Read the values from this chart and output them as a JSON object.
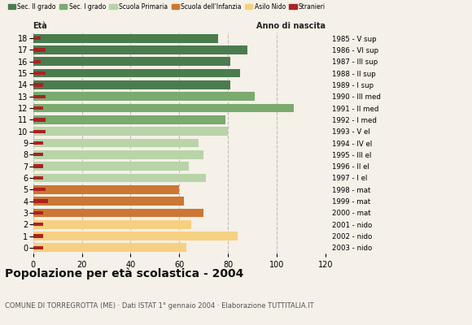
{
  "ages": [
    18,
    17,
    16,
    15,
    14,
    13,
    12,
    11,
    10,
    9,
    8,
    7,
    6,
    5,
    4,
    3,
    2,
    1,
    0
  ],
  "year_labels": [
    "1985 - V sup",
    "1986 - VI sup",
    "1987 - III sup",
    "1988 - II sup",
    "1989 - I sup",
    "1990 - III med",
    "1991 - II med",
    "1992 - I med",
    "1993 - V el",
    "1994 - IV el",
    "1995 - III el",
    "1996 - II el",
    "1997 - I el",
    "1998 - mat",
    "1999 - mat",
    "2000 - mat",
    "2001 - nido",
    "2002 - nido",
    "2003 - nido"
  ],
  "values": [
    76,
    88,
    81,
    85,
    81,
    91,
    107,
    79,
    80,
    68,
    70,
    64,
    71,
    60,
    62,
    70,
    65,
    84,
    63
  ],
  "stranieri": [
    3,
    5,
    3,
    5,
    4,
    5,
    4,
    5,
    5,
    4,
    4,
    4,
    4,
    5,
    6,
    4,
    4,
    4,
    4
  ],
  "colors": {
    "sec2": "#4a7c4e",
    "sec1": "#7aaa6e",
    "primaria": "#b8d4a8",
    "infanzia": "#cc7733",
    "nido": "#f5d080",
    "stranieri": "#aa2222"
  },
  "legend_labels": [
    "Sec. II grado",
    "Sec. I grado",
    "Scuola Primaria",
    "Scuola dell'Infanzia",
    "Asilo Nido",
    "Stranieri"
  ],
  "title": "Popolazione per età scolastica - 2004",
  "subtitle": "COMUNE DI TORREGROTTA (ME) · Dati ISTAT 1° gennaio 2004 · Elaborazione TUTTITALIA.IT",
  "xlabel_eta": "Età",
  "xlabel_anno": "Anno di nascita",
  "xlim": [
    0,
    120
  ],
  "xticks": [
    0,
    20,
    40,
    60,
    80,
    100,
    120
  ],
  "bar_height": 0.75,
  "background": "#f5f0e8"
}
